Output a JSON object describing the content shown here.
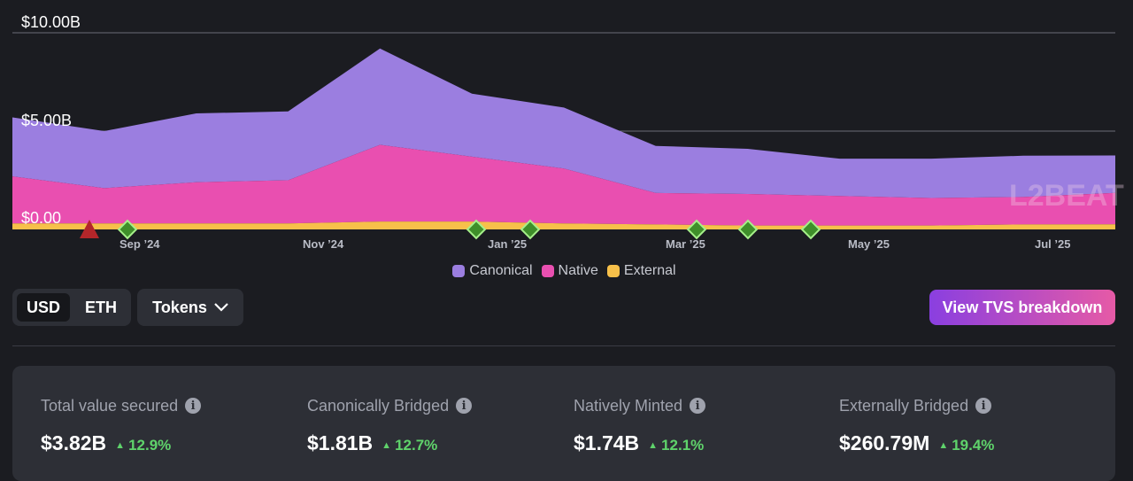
{
  "chart_data": {
    "type": "area",
    "stacked": true,
    "ylabels": [
      "$10.00B",
      "$5.00B",
      "$0.00"
    ],
    "ylim": [
      0,
      10
    ],
    "xlabels": [
      "Sep ’24",
      "Nov ’24",
      "Jan ’25",
      "Mar ’25",
      "May ’25",
      "Jul ’25"
    ],
    "x": [
      "Aug ’24",
      "Sep ’24",
      "Oct ’24",
      "Nov ’24",
      "Dec ’24",
      "Jan ’25",
      "Feb ’25",
      "Mar ’25",
      "Apr ’25",
      "May ’25",
      "Jun ’25",
      "Jul ’25",
      "Aug ’25"
    ],
    "series": [
      {
        "name": "Canonical",
        "color": "#9b7ee0",
        "values": [
          3.0,
          2.9,
          3.5,
          3.5,
          4.9,
          3.2,
          3.1,
          2.4,
          2.3,
          1.9,
          2.0,
          2.1,
          1.9
        ]
      },
      {
        "name": "Native",
        "color": "#e94fb0",
        "values": [
          2.4,
          1.8,
          2.1,
          2.2,
          3.9,
          3.3,
          2.8,
          1.6,
          1.6,
          1.5,
          1.4,
          1.4,
          1.6
        ]
      },
      {
        "name": "External",
        "color": "#f7c04a",
        "values": [
          0.3,
          0.3,
          0.3,
          0.3,
          0.4,
          0.4,
          0.3,
          0.25,
          0.2,
          0.2,
          0.2,
          0.25,
          0.26
        ]
      }
    ],
    "legend": "bottom-center",
    "watermark": "L2BEAT"
  },
  "legend": {
    "canonical": "Canonical",
    "native": "Native",
    "external": "External"
  },
  "controls": {
    "usd": "USD",
    "eth": "ETH",
    "tokens": "Tokens",
    "view_breakdown": "View TVS breakdown"
  },
  "stats": [
    {
      "label": "Total value secured",
      "value": "$3.82B",
      "change": "12.9%"
    },
    {
      "label": "Canonically Bridged",
      "value": "$1.81B",
      "change": "12.7%"
    },
    {
      "label": "Natively Minted",
      "value": "$1.74B",
      "change": "12.1%"
    },
    {
      "label": "Externally Bridged",
      "value": "$260.79M",
      "change": "19.4%"
    }
  ],
  "colors": {
    "canonical": "#9b7ee0",
    "native": "#e94fb0",
    "external": "#f7c04a",
    "positive": "#5fd36b",
    "milestone": "#3f8f2a",
    "alert": "#b3262a"
  }
}
